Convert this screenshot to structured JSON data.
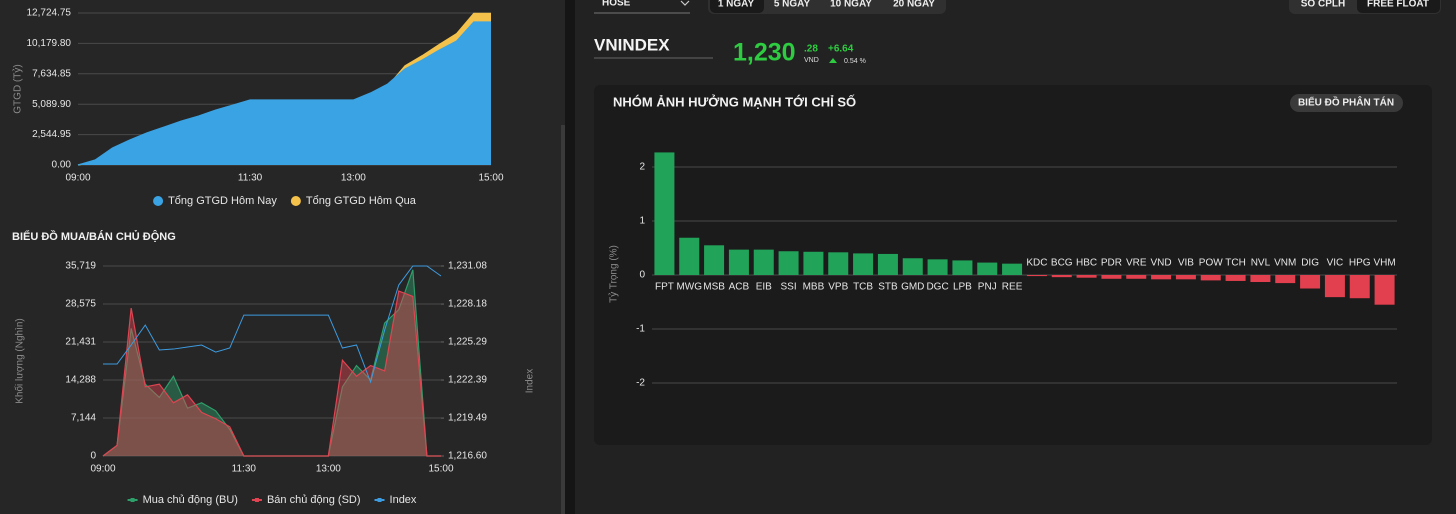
{
  "header": {
    "exchange": "HOSE",
    "periods": [
      "1 NGAY",
      "5 NGAY",
      "10 NGAY",
      "20 NGAY"
    ],
    "weight_modes": [
      "SO CPLH",
      "FREE FLOAT"
    ],
    "index_name": "VNINDEX",
    "price_int": "1,230",
    "price_dec": ".28",
    "currency": "VND",
    "change": "+6.64",
    "change_pct": "0.54 %",
    "scatter_button": "BIỂU ĐỒ PHÂN TÁN"
  },
  "chart_data": [
    {
      "type": "area",
      "ylabel": "GTGD (Tỷ)",
      "categories": [
        "09:00",
        null,
        null,
        null,
        null,
        null,
        null,
        null,
        null,
        null,
        "11:30",
        null,
        null,
        null,
        null,
        null,
        "13:00",
        null,
        null,
        null,
        null,
        null,
        null,
        null,
        "15:00"
      ],
      "series": [
        {
          "name": "Tổng GTGD Hôm Qua",
          "color": "#f4c24a",
          "values": [
            0,
            250,
            1100,
            1750,
            2300,
            2800,
            3300,
            3700,
            4200,
            4600,
            5000,
            5000,
            5000,
            5000,
            5000,
            5000,
            5000,
            5700,
            6600,
            8300,
            9150,
            10100,
            11000,
            12700,
            12700
          ]
        },
        {
          "name": "Tổng GTGD Hôm Nay",
          "color": "#3aa3e3",
          "values": [
            0,
            420,
            1420,
            2090,
            2680,
            3180,
            3680,
            4100,
            4600,
            5020,
            5440,
            5440,
            5440,
            5440,
            5440,
            5440,
            5440,
            6030,
            6780,
            8040,
            8790,
            9630,
            10380,
            11970,
            11970
          ]
        }
      ],
      "legend_order": [
        1,
        0
      ],
      "legend": "bottom",
      "legend_marker": "circle",
      "fill_opacity": 1,
      "grid": true,
      "ylim": [
        0,
        12724.75
      ],
      "yticks": [
        {
          "value": 0,
          "label": "0.00"
        },
        {
          "value": 2544.95,
          "label": "2,544.95"
        },
        {
          "value": 5089.9,
          "label": "5,089.90"
        },
        {
          "value": 7634.85,
          "label": "7,634.85"
        },
        {
          "value": 10179.8,
          "label": "10,179.80"
        },
        {
          "value": 12724.75,
          "label": "12,724.75"
        }
      ]
    },
    {
      "type": "area",
      "title": "BIỂU ĐỒ MUA/BÁN CHỦ ĐỘNG",
      "ylabel": "Khối lượng (Nghìn)",
      "y2label": "Index",
      "categories": [
        "09:00",
        null,
        null,
        null,
        null,
        null,
        null,
        null,
        null,
        null,
        "11:30",
        null,
        null,
        null,
        null,
        null,
        "13:00",
        null,
        null,
        null,
        null,
        null,
        null,
        null,
        "15:00"
      ],
      "series": [
        {
          "name": "Mua chủ động (BU)",
          "color": "#2e9e6a",
          "values": [
            0,
            2000,
            24000,
            13500,
            11000,
            15000,
            9000,
            10000,
            8500,
            5000,
            0,
            0,
            0,
            0,
            0,
            0,
            0,
            13000,
            17000,
            14300,
            25000,
            27500,
            35000,
            0,
            0
          ]
        },
        {
          "name": "Bán chủ động (SD)",
          "color": "#e04452",
          "values": [
            0,
            2000,
            27800,
            13000,
            13500,
            10000,
            11500,
            8200,
            7000,
            5500,
            0,
            0,
            0,
            0,
            0,
            0,
            0,
            18000,
            15000,
            17000,
            16000,
            31000,
            30000,
            0,
            0
          ]
        },
        {
          "name": "Index",
          "color": "#3d9be0",
          "axis": "y2",
          "values": [
            1223.61,
            1223.61,
            1225.06,
            1226.58,
            1224.68,
            1224.75,
            1224.91,
            1225.06,
            1224.52,
            1224.83,
            1227.34,
            1227.34,
            1227.34,
            1227.34,
            1227.34,
            1227.34,
            1227.34,
            1224.83,
            1225.06,
            1222.24,
            1226.2,
            1229.63,
            1231.08,
            1231.08,
            1230.32
          ]
        }
      ],
      "legend_order": [
        0,
        1,
        2
      ],
      "legend": "bottom",
      "legend_marker": "line",
      "fill_opacity": 0.45,
      "grid": true,
      "ylim": [
        0,
        35719
      ],
      "yticks": [
        0,
        {
          "value": 7144,
          "label": "7,144"
        },
        {
          "value": 14288,
          "label": "14,288"
        },
        {
          "value": 21431,
          "label": "21,431"
        },
        {
          "value": 28575,
          "label": "28,575"
        },
        {
          "value": 35719,
          "label": "35,719"
        }
      ],
      "y2lim": [
        1216.6,
        1231.08
      ],
      "y2ticks": [
        {
          "value": 1216.6,
          "label": "1,216.60"
        },
        {
          "value": 1219.49,
          "label": "1,219.49"
        },
        {
          "value": 1222.39,
          "label": "1,222.39"
        },
        {
          "value": 1225.29,
          "label": "1,225.29"
        },
        {
          "value": 1228.18,
          "label": "1,228.18"
        },
        {
          "value": 1231.08,
          "label": "1,231.08"
        }
      ]
    },
    {
      "type": "bar",
      "title": "NHÓM ẢNH HƯỞNG MẠNH TỚI CHỈ SỐ",
      "ylabel": "Tỷ Trọng (%)",
      "categories": [
        "FPT",
        "MWG",
        "MSB",
        "ACB",
        "EIB",
        "SSI",
        "MBB",
        "VPB",
        "TCB",
        "STB",
        "GMD",
        "DGC",
        "LPB",
        "PNJ",
        "REE",
        "KDC",
        "BCG",
        "HBC",
        "PDR",
        "VRE",
        "VND",
        "VIB",
        "POW",
        "TCH",
        "NVL",
        "VNM",
        "DIG",
        "VIC",
        "HPG",
        "VHM"
      ],
      "values": [
        2.27,
        0.69,
        0.55,
        0.47,
        0.47,
        0.44,
        0.43,
        0.42,
        0.4,
        0.39,
        0.31,
        0.29,
        0.27,
        0.23,
        0.21,
        -0.02,
        -0.04,
        -0.05,
        -0.07,
        -0.07,
        -0.08,
        -0.08,
        -0.1,
        -0.11,
        -0.13,
        -0.15,
        -0.25,
        -0.41,
        -0.43,
        -0.55
      ],
      "color": "#22a35a",
      "negative_color": "#e2404e",
      "grid": true,
      "ylim": [
        -2,
        2.4
      ],
      "yticks": [
        -2,
        -1,
        0,
        1,
        2
      ]
    }
  ]
}
